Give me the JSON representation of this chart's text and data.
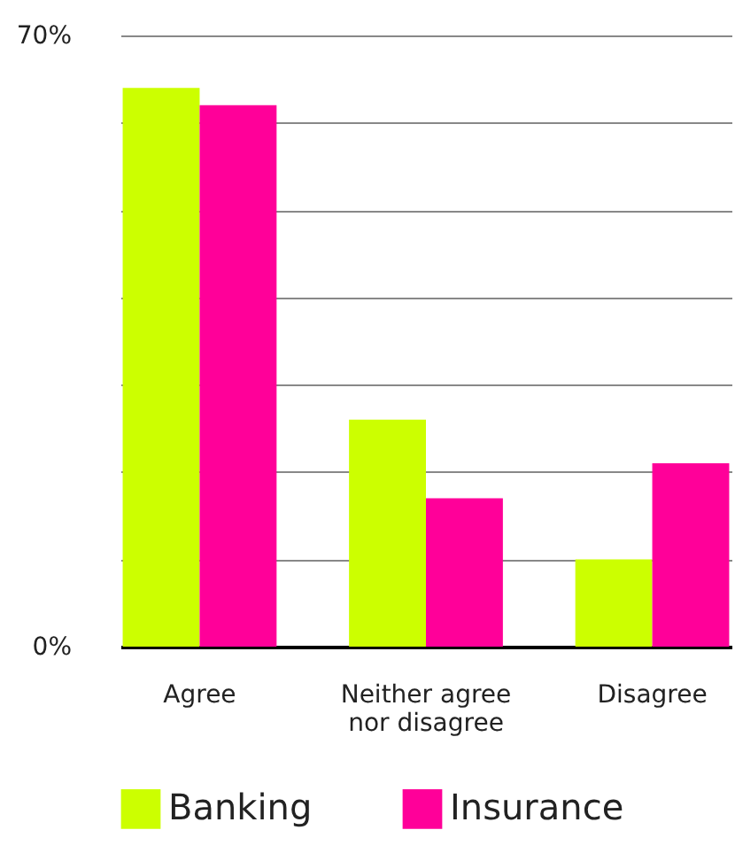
{
  "chart_data": {
    "type": "bar",
    "categories": [
      "Agree",
      "Neither agree nor disagree",
      "Disagree"
    ],
    "series": [
      {
        "name": "Banking",
        "color": "#ccff00",
        "values": [
          64,
          26,
          10
        ]
      },
      {
        "name": "Insurance",
        "color": "#ff0099",
        "values": [
          62,
          17,
          21
        ]
      }
    ],
    "ylim": [
      0,
      70
    ],
    "yticks": [
      {
        "value": 0,
        "label": "0%"
      },
      {
        "value": 10,
        "label": null
      },
      {
        "value": 20,
        "label": null
      },
      {
        "value": 30,
        "label": null
      },
      {
        "value": 40,
        "label": null
      },
      {
        "value": 50,
        "label": null
      },
      {
        "value": 60,
        "label": null
      },
      {
        "value": 70,
        "label": "70%"
      }
    ],
    "grid": "y",
    "legend": "bottom"
  }
}
